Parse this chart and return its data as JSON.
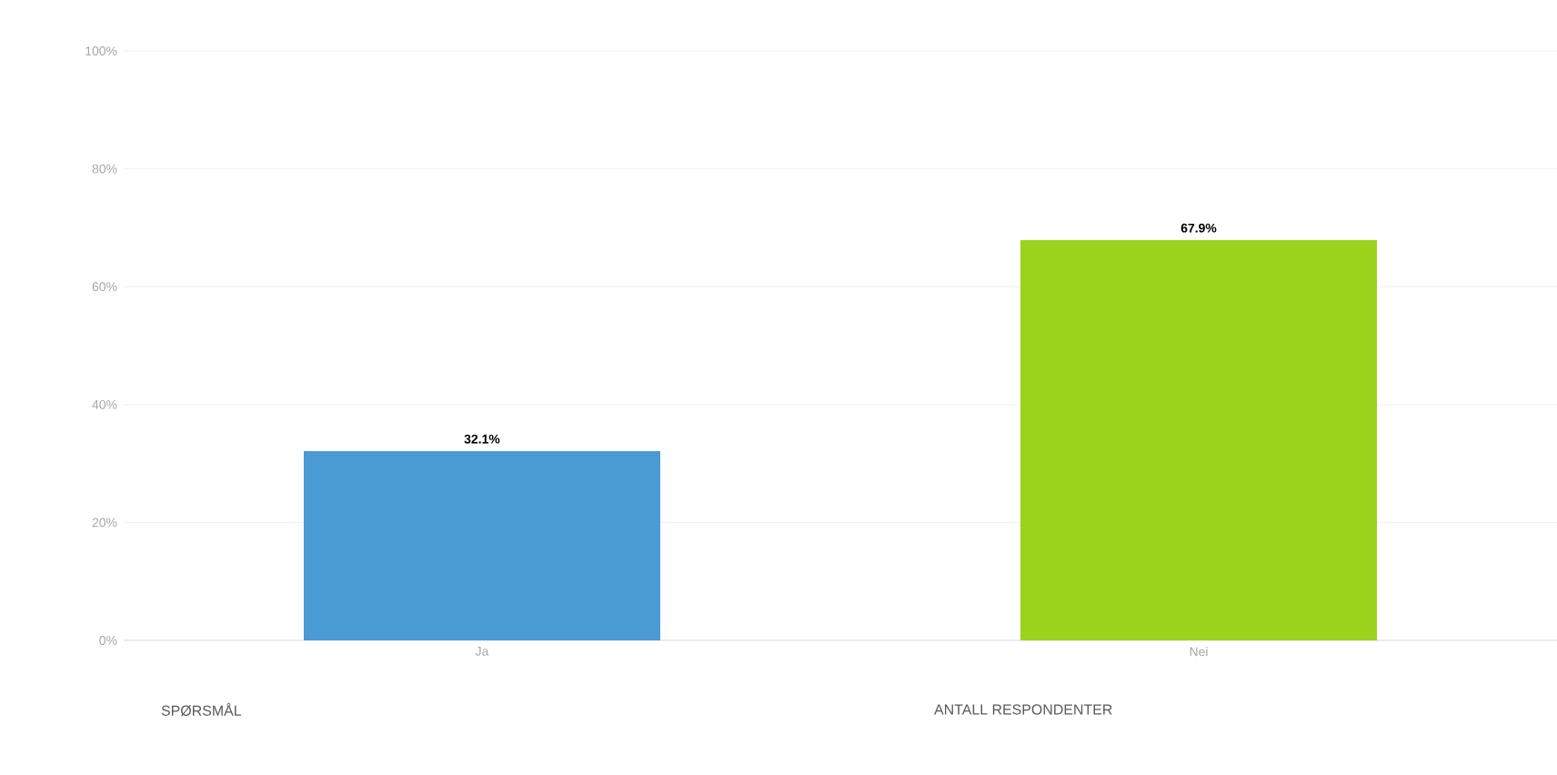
{
  "chart_data": {
    "type": "bar",
    "categories": [
      "Ja",
      "Nei"
    ],
    "values": [
      32.1,
      67.9
    ],
    "colors": [
      "#4a9ad4",
      "#9bd31c"
    ],
    "value_labels": [
      "32.1%",
      "67.9%"
    ],
    "ylim": [
      0,
      100
    ],
    "yticks": [
      {
        "value": 0,
        "label": "0%"
      },
      {
        "value": 20,
        "label": "20%"
      },
      {
        "value": 40,
        "label": "40%"
      },
      {
        "value": 60,
        "label": "60%"
      },
      {
        "value": 80,
        "label": "80%"
      },
      {
        "value": 100,
        "label": "100%"
      }
    ],
    "grid": "y",
    "annotations": [
      "SPØRSMÅL",
      "ANTALL RESPONDENTER"
    ]
  }
}
